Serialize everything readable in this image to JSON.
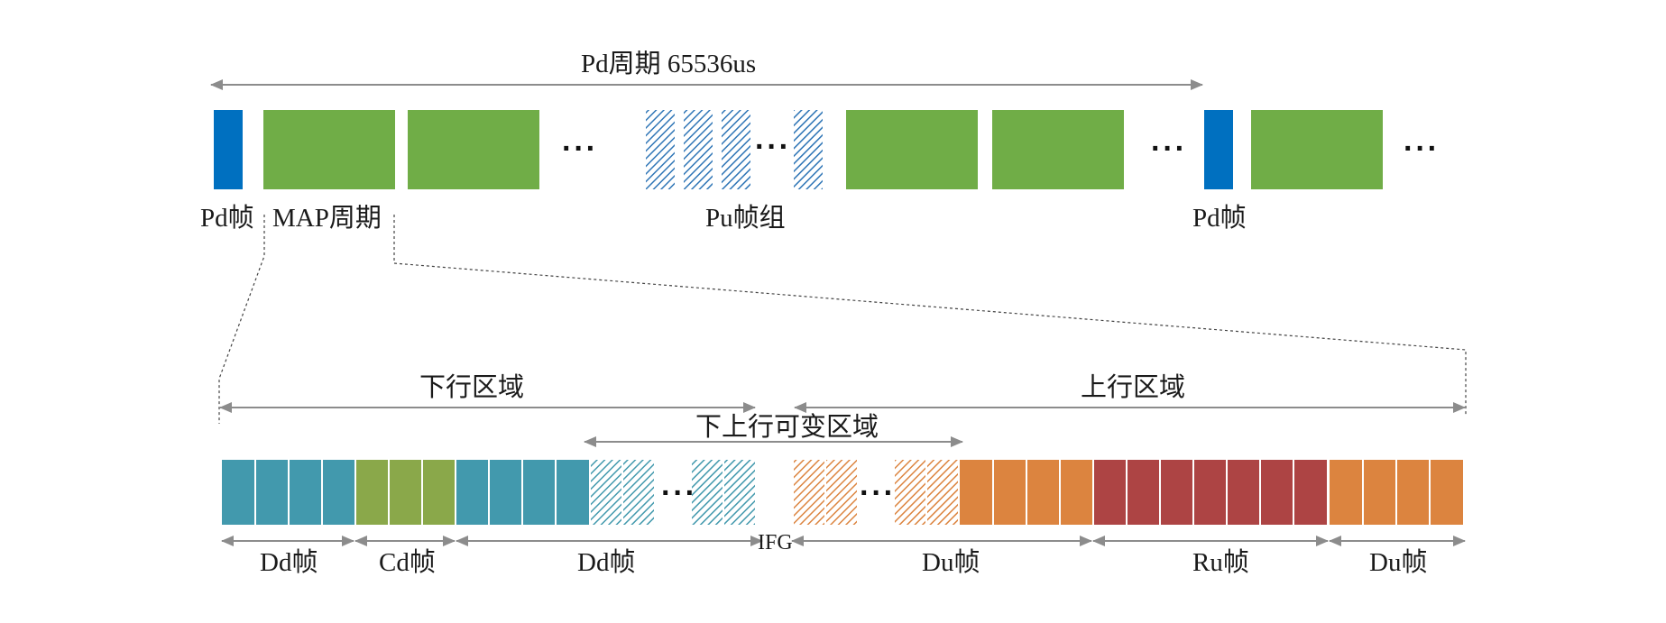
{
  "top": {
    "period_label": "Pd周期 65536us",
    "pd_frame_left_label": "Pd帧",
    "map_period_label": "MAP周期",
    "pu_group_label": "Pu帧组",
    "pd_frame_right_label": "Pd帧"
  },
  "bottom": {
    "downlink_region_label": "下行区域",
    "uplink_region_label": "上行区域",
    "variable_region_label": "下上行可变区域",
    "ifg_label": "IFG",
    "segment_labels": [
      "Dd帧",
      "Cd帧",
      "Dd帧",
      "Du帧",
      "Ru帧",
      "Du帧"
    ]
  },
  "colors": {
    "pd_blue": "#0070c0",
    "green": "#70ad47",
    "pu_hatch": "#2e75b6",
    "dd_teal": "#4299ad",
    "cd_green": "#8aa84a",
    "du_orange": "#dc843f",
    "ru_red": "#ad4444",
    "arrow_gray": "#8c8c8c"
  }
}
